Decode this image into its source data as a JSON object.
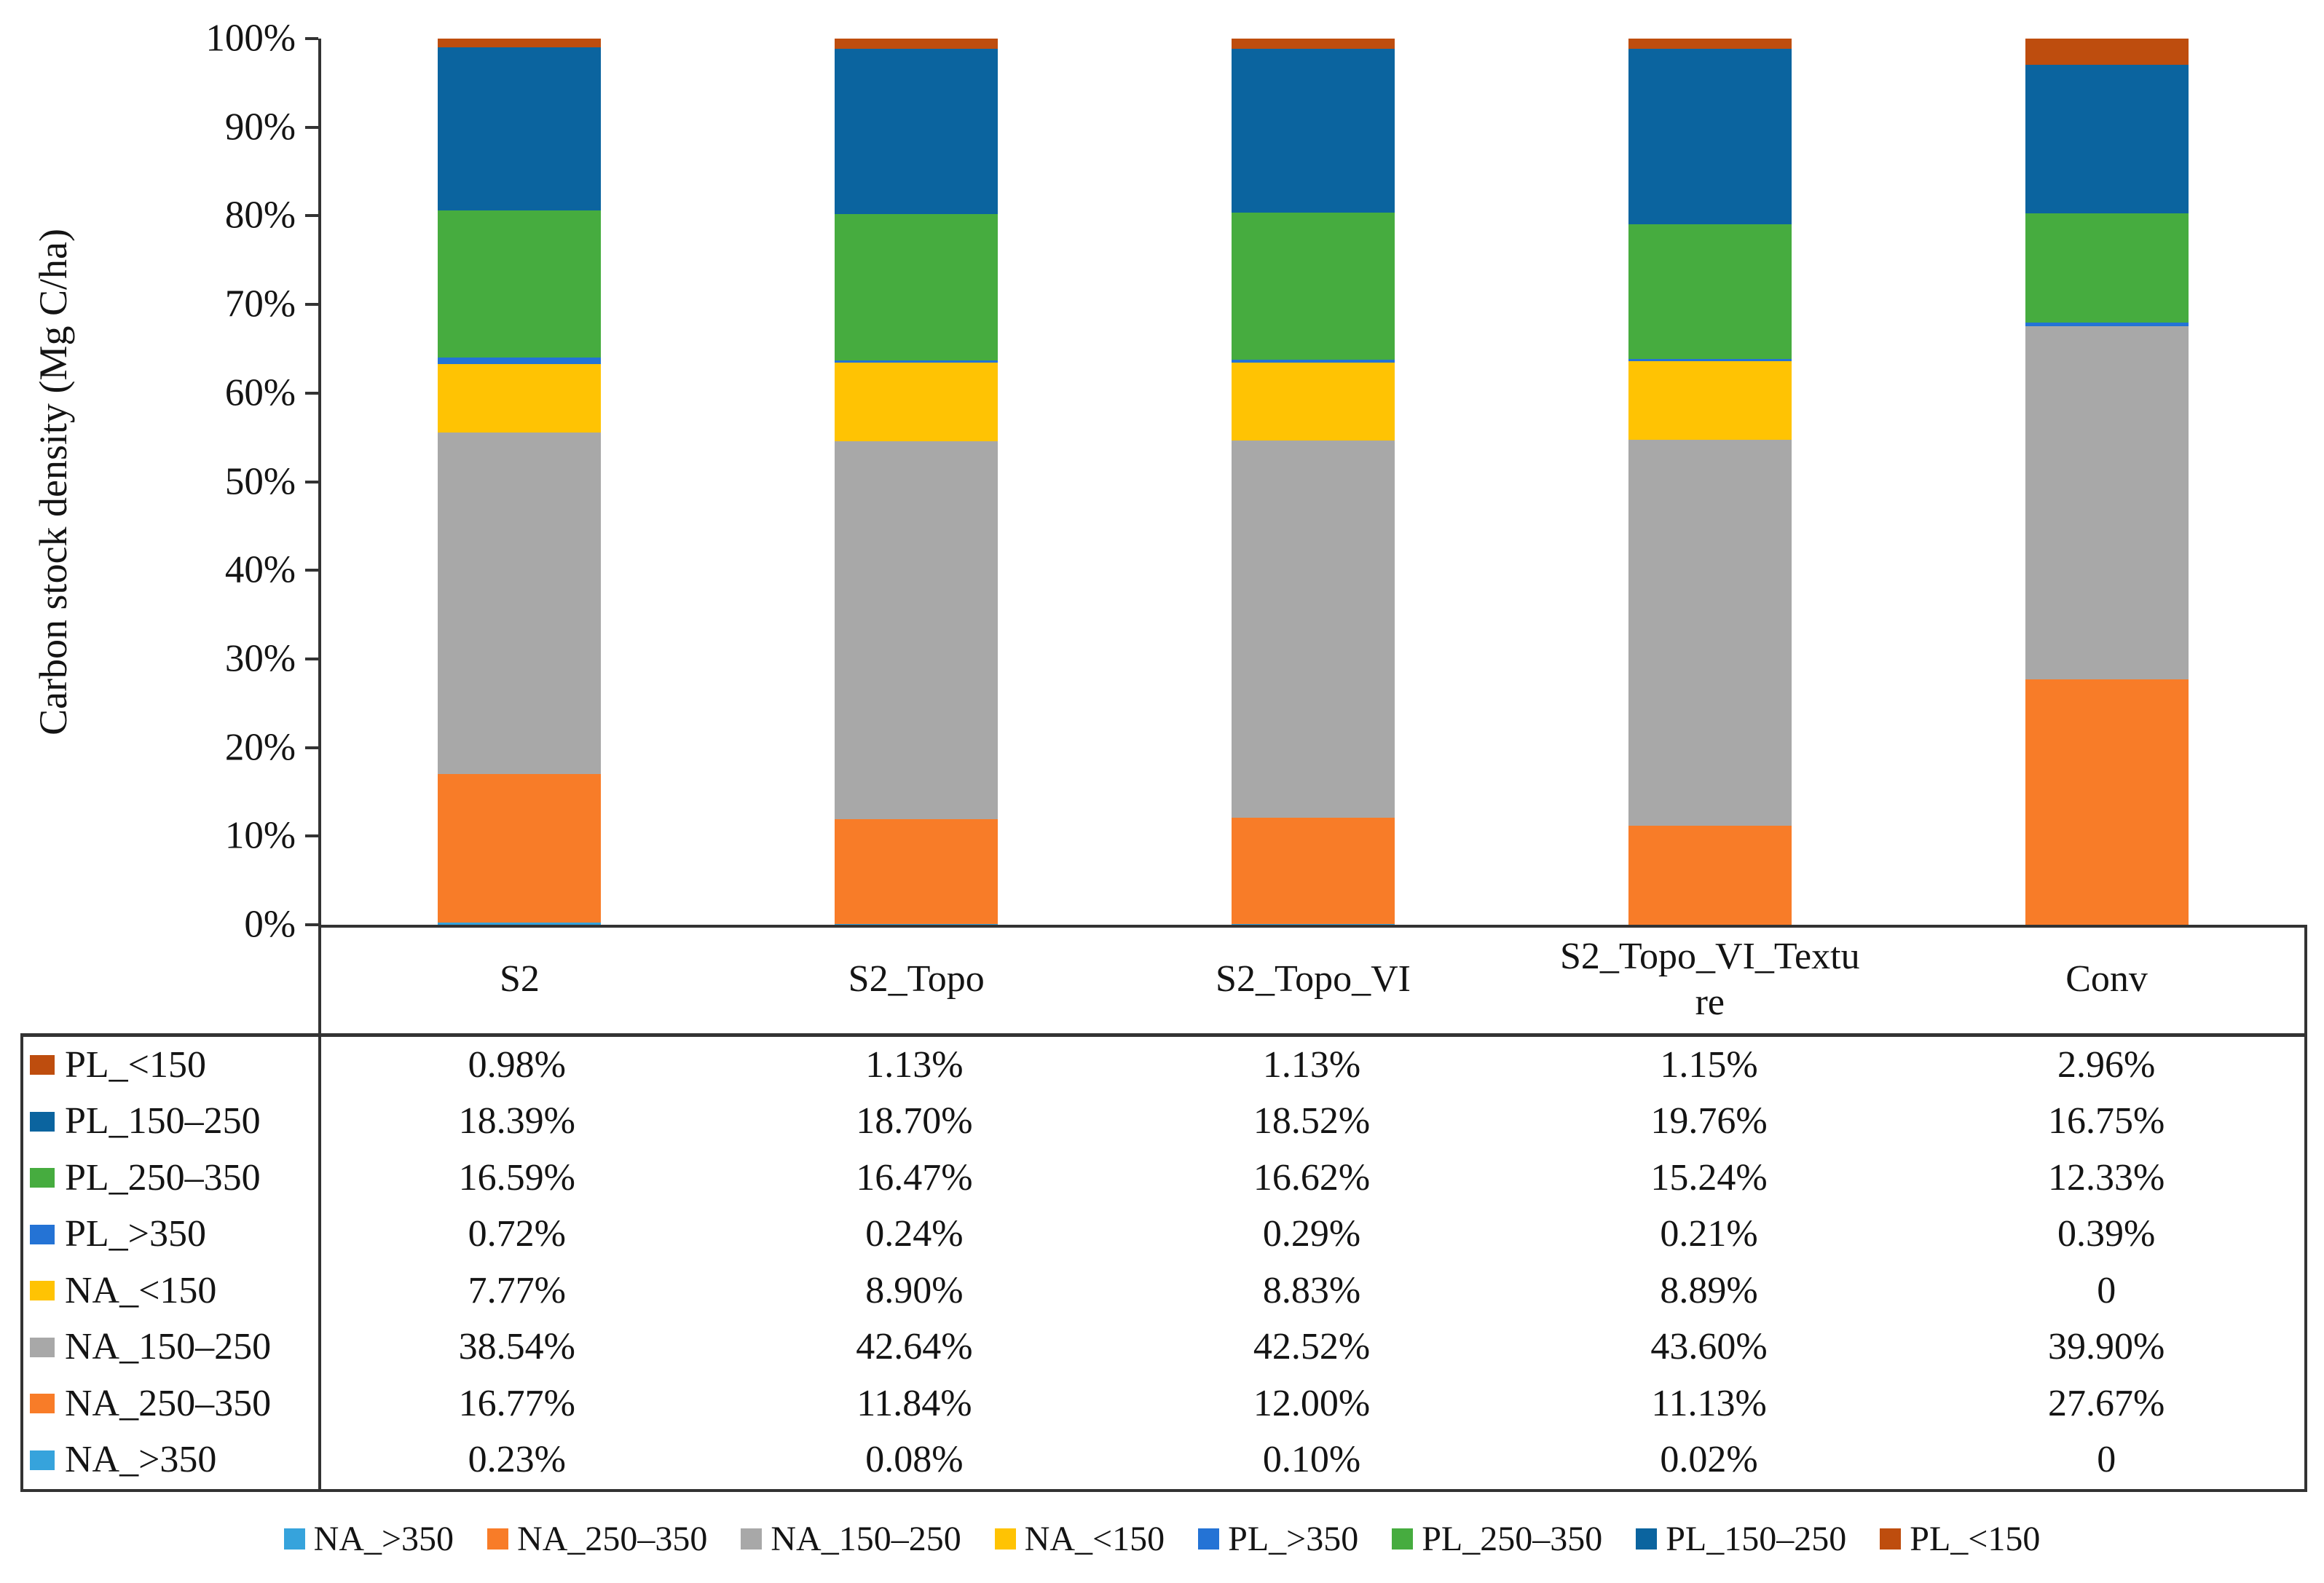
{
  "figure": {
    "y_axis_title": "Carbon stock density (Mg C/ha)",
    "y_ticks": [
      "100%",
      "90%",
      "80%",
      "70%",
      "60%",
      "50%",
      "40%",
      "30%",
      "20%",
      "10%",
      "0%"
    ]
  },
  "chart_data": {
    "type": "bar",
    "stacked": true,
    "percent_stacked": true,
    "title": "",
    "xlabel": "",
    "ylabel": "Carbon stock density (Mg C/ha)",
    "ylim": [
      0,
      100
    ],
    "grid": false,
    "legend_position": "bottom",
    "categories": [
      "S2",
      "S2_Topo",
      "S2_Topo_VI",
      "S2_Topo_VI_Texture",
      "Conv"
    ],
    "series": [
      {
        "name": "NA_>350",
        "color": "#36A3DC",
        "values": [
          0.23,
          0.08,
          0.1,
          0.02,
          0
        ]
      },
      {
        "name": "NA_250–350",
        "color": "#F87C28",
        "values": [
          16.77,
          11.84,
          12.0,
          11.13,
          27.67
        ]
      },
      {
        "name": "NA_150–250",
        "color": "#A8A8A8",
        "values": [
          38.54,
          42.64,
          42.52,
          43.6,
          39.9
        ]
      },
      {
        "name": "NA_<150",
        "color": "#FFC303",
        "values": [
          7.77,
          8.9,
          8.83,
          8.89,
          0
        ]
      },
      {
        "name": "PL_>350",
        "color": "#2473D5",
        "values": [
          0.72,
          0.24,
          0.29,
          0.21,
          0.39
        ]
      },
      {
        "name": "PL_250–350",
        "color": "#46AC3F",
        "values": [
          16.59,
          16.47,
          16.62,
          15.24,
          12.33
        ]
      },
      {
        "name": "PL_150–250",
        "color": "#0B649F",
        "values": [
          18.39,
          18.7,
          18.52,
          19.76,
          16.75
        ]
      },
      {
        "name": "PL_<150",
        "color": "#BE4D0E",
        "values": [
          0.98,
          1.13,
          1.13,
          1.15,
          2.96
        ]
      }
    ]
  },
  "table": {
    "rows": [
      {
        "name": "PL_<150",
        "color": "#BE4D0E",
        "values": [
          "0.98%",
          "1.13%",
          "1.13%",
          "1.15%",
          "2.96%"
        ]
      },
      {
        "name": "PL_150–250",
        "color": "#0B649F",
        "values": [
          "18.39%",
          "18.70%",
          "18.52%",
          "19.76%",
          "16.75%"
        ]
      },
      {
        "name": "PL_250–350",
        "color": "#46AC3F",
        "values": [
          "16.59%",
          "16.47%",
          "16.62%",
          "15.24%",
          "12.33%"
        ]
      },
      {
        "name": "PL_>350",
        "color": "#2473D5",
        "values": [
          "0.72%",
          "0.24%",
          "0.29%",
          "0.21%",
          "0.39%"
        ]
      },
      {
        "name": "NA_<150",
        "color": "#FFC303",
        "values": [
          "7.77%",
          "8.90%",
          "8.83%",
          "8.89%",
          "0"
        ]
      },
      {
        "name": "NA_150–250",
        "color": "#A8A8A8",
        "values": [
          "38.54%",
          "42.64%",
          "42.52%",
          "43.60%",
          "39.90%"
        ]
      },
      {
        "name": "NA_250–350",
        "color": "#F87C28",
        "values": [
          "16.77%",
          "11.84%",
          "12.00%",
          "11.13%",
          "27.67%"
        ]
      },
      {
        "name": "NA_>350",
        "color": "#36A3DC",
        "values": [
          "0.23%",
          "0.08%",
          "0.10%",
          "0.02%",
          "0"
        ]
      }
    ]
  },
  "legend": {
    "items": [
      {
        "label": "NA_>350",
        "color": "#36A3DC"
      },
      {
        "label": "NA_250–350",
        "color": "#F87C28"
      },
      {
        "label": "NA_150–250",
        "color": "#A8A8A8"
      },
      {
        "label": "NA_<150",
        "color": "#FFC303"
      },
      {
        "label": "PL_>350",
        "color": "#2473D5"
      },
      {
        "label": "PL_250–350",
        "color": "#46AC3F"
      },
      {
        "label": "PL_150–250",
        "color": "#0B649F"
      },
      {
        "label": "PL_<150",
        "color": "#BE4D0E"
      }
    ]
  }
}
